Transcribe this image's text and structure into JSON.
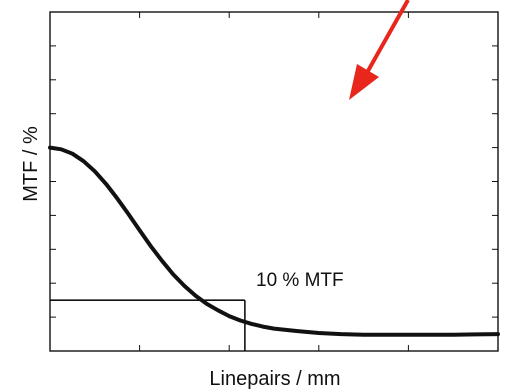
{
  "chart_data": {
    "type": "line",
    "xlabel": "Linepairs / mm",
    "ylabel": "MTF / %",
    "xlim": [
      0,
      100
    ],
    "ylim": [
      0,
      100
    ],
    "x_tick_count": 4,
    "y_tick_count": 9,
    "grid": false,
    "series": [
      {
        "x": [
          0,
          2.5,
          5,
          7.5,
          10,
          12.5,
          15,
          17.5,
          20,
          22.5,
          25,
          27.5,
          30,
          32.5,
          35,
          37.5,
          40,
          42.5,
          45,
          47.5,
          50,
          55,
          60,
          65,
          70,
          75,
          80,
          85,
          90,
          95,
          100
        ],
        "y": [
          60,
          59.5,
          58.2,
          56,
          53,
          49.3,
          45,
          40.4,
          35.6,
          30.9,
          26.6,
          22.6,
          19.2,
          16.3,
          13.9,
          12,
          10.3,
          9,
          8,
          7.2,
          6.6,
          5.9,
          5.3,
          5,
          4.8,
          4.8,
          4.8,
          4.8,
          4.8,
          4.9,
          5
        ]
      }
    ],
    "reference": {
      "x": 43.5,
      "y": 15
    },
    "annotation": "10 % MTF",
    "arrow_color": "#e8261c",
    "line_color": "#111111"
  }
}
